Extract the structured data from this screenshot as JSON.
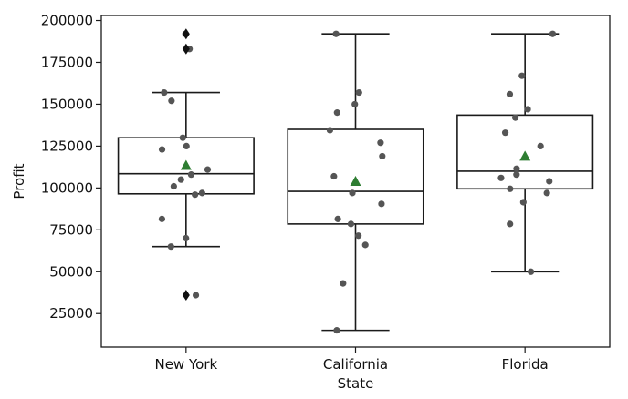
{
  "chart_data": {
    "type": "box",
    "xlabel": "State",
    "ylabel": "Profit",
    "ylim": [
      5000,
      203000
    ],
    "yticks": [
      25000,
      50000,
      75000,
      100000,
      125000,
      150000,
      175000,
      200000
    ],
    "ytick_labels": [
      "25000",
      "50000",
      "75000",
      "100000",
      "125000",
      "150000",
      "175000",
      "200000"
    ],
    "grid": false,
    "colors": {
      "box_fill": "#ffffff",
      "box_edge": "#1a1a1a",
      "point": "#555555",
      "mean_marker": "#2e7d32",
      "outlier": "#111111"
    },
    "categories": [
      "New York",
      "California",
      "Florida"
    ],
    "boxes": [
      {
        "name": "New York",
        "whisker_low": 65000,
        "q1": 96500,
        "median": 108500,
        "q3": 130000,
        "whisker_high": 157000,
        "mean": 113500,
        "outliers": [
          36000,
          183000,
          192000
        ],
        "points": [
          192000,
          183000,
          157000,
          152000,
          130000,
          125000,
          123000,
          111000,
          108000,
          105000,
          101000,
          97000,
          96000,
          81500,
          70000,
          65000,
          36000
        ]
      },
      {
        "name": "California",
        "whisker_low": 15000,
        "q1": 78500,
        "median": 98000,
        "q3": 135000,
        "whisker_high": 192000,
        "mean": 104000,
        "outliers": [],
        "points": [
          192000,
          157000,
          150000,
          145000,
          134500,
          127000,
          119000,
          107000,
          97000,
          90500,
          81500,
          78500,
          71500,
          66000,
          43000,
          15000
        ]
      },
      {
        "name": "Florida",
        "whisker_low": 50000,
        "q1": 99500,
        "median": 110000,
        "q3": 143500,
        "whisker_high": 192000,
        "mean": 119000,
        "outliers": [],
        "points": [
          192000,
          167000,
          156000,
          147000,
          142000,
          133000,
          125000,
          111500,
          108000,
          106000,
          104000,
          99500,
          97000,
          91500,
          78500,
          50000
        ]
      }
    ]
  }
}
